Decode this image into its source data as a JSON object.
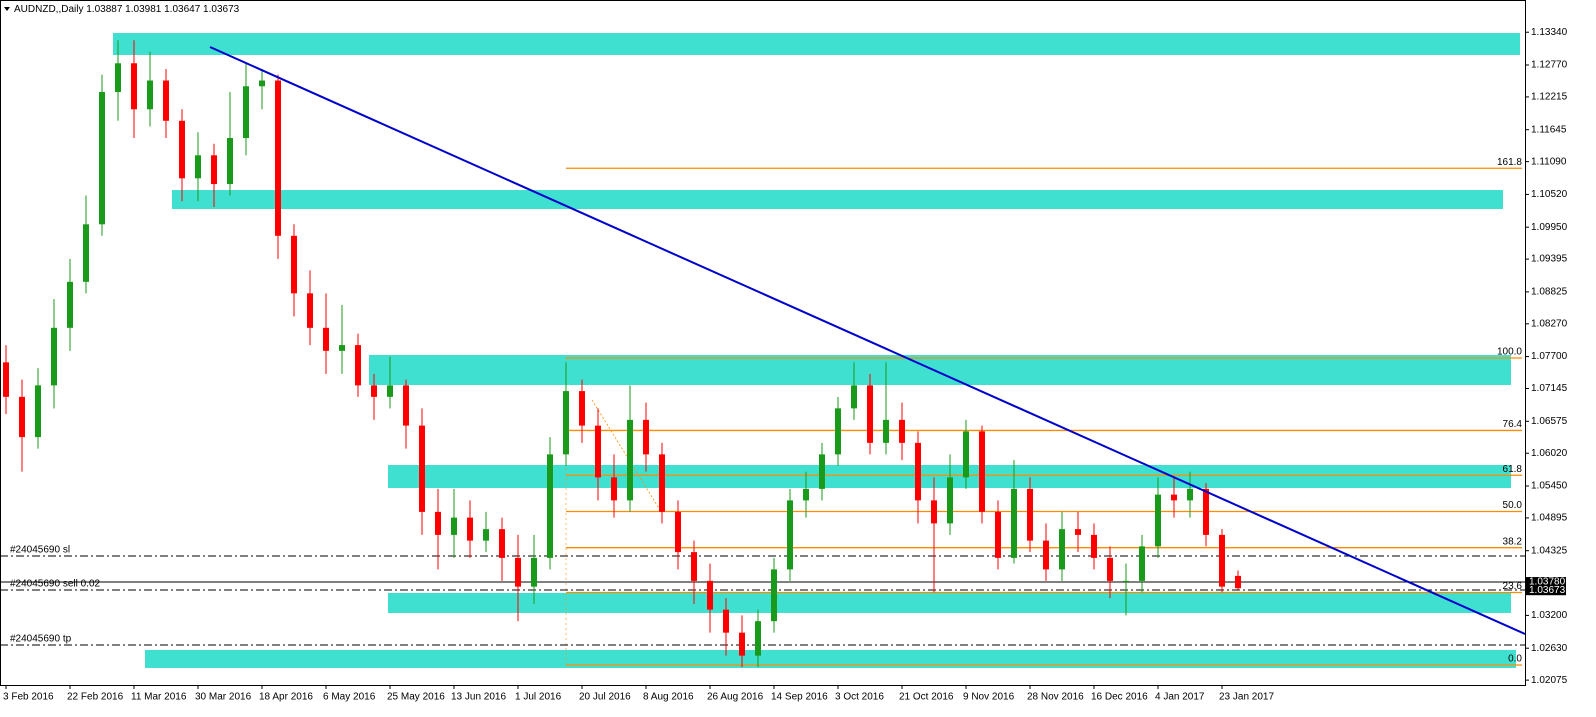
{
  "chart_data": {
    "type": "candlestick",
    "symbol": "AUDNZD,,Daily",
    "categories": [
      "3 Feb 2016",
      null,
      null,
      null,
      "22 Feb 2016",
      null,
      null,
      null,
      "11 Mar 2016",
      null,
      null,
      null,
      "30 Mar 2016",
      null,
      null,
      null,
      "18 Apr 2016",
      null,
      null,
      null,
      "6 May 2016",
      null,
      null,
      null,
      "25 May 2016",
      null,
      null,
      null,
      "13 Jun 2016",
      null,
      null,
      null,
      "1 Jul 2016",
      null,
      null,
      null,
      "20 Jul 2016",
      null,
      null,
      null,
      "8 Aug 2016",
      null,
      null,
      null,
      "26 Aug 2016",
      null,
      null,
      null,
      "14 Sep 2016",
      null,
      null,
      null,
      "3 Oct 2016",
      null,
      null,
      null,
      "21 Oct 2016",
      null,
      null,
      null,
      "9 Nov 2016",
      null,
      null,
      null,
      "28 Nov 2016",
      null,
      null,
      null,
      "16 Dec 2016",
      null,
      null,
      null,
      "4 Jan 2017",
      null,
      null,
      null,
      "23 Jan 2017",
      null
    ],
    "open": [
      1.076,
      1.07,
      1.063,
      1.072,
      1.082,
      1.09,
      1.1,
      1.123,
      1.128,
      1.12,
      1.125,
      1.118,
      1.108,
      1.112,
      1.107,
      1.115,
      1.124,
      1.125,
      1.098,
      1.088,
      1.082,
      1.078,
      1.079,
      1.072,
      1.07,
      1.072,
      1.065,
      1.05,
      1.046,
      1.049,
      1.045,
      1.047,
      1.042,
      1.037,
      1.042,
      1.06,
      1.071,
      1.065,
      1.056,
      1.052,
      1.066,
      1.06,
      1.05,
      1.043,
      1.038,
      1.033,
      1.029,
      1.025,
      1.031,
      1.04,
      1.052,
      1.054,
      1.06,
      1.068,
      1.072,
      1.062,
      1.066,
      1.062,
      1.052,
      1.048,
      1.056,
      1.064,
      1.05,
      1.042,
      1.054,
      1.045,
      1.04,
      1.047,
      1.046,
      1.042,
      1.038,
      1.038,
      1.044,
      1.053,
      1.052,
      1.054,
      1.046,
      1.03887
    ],
    "high": [
      1.079,
      1.073,
      1.075,
      1.087,
      1.094,
      1.105,
      1.126,
      1.132,
      1.132,
      1.13,
      1.127,
      1.12,
      1.116,
      1.114,
      1.123,
      1.128,
      1.127,
      1.126,
      1.1,
      1.092,
      1.088,
      1.086,
      1.081,
      1.074,
      1.077,
      1.073,
      1.068,
      1.054,
      1.054,
      1.052,
      1.05,
      1.049,
      1.046,
      1.046,
      1.063,
      1.076,
      1.073,
      1.068,
      1.06,
      1.072,
      1.069,
      1.062,
      1.052,
      1.045,
      1.041,
      1.035,
      1.032,
      1.033,
      1.042,
      1.054,
      1.057,
      1.062,
      1.07,
      1.076,
      1.074,
      1.076,
      1.069,
      1.064,
      1.056,
      1.06,
      1.066,
      1.065,
      1.052,
      1.059,
      1.056,
      1.048,
      1.05,
      1.05,
      1.048,
      1.044,
      1.041,
      1.046,
      1.056,
      1.056,
      1.057,
      1.055,
      1.047,
      1.03981
    ],
    "low": [
      1.067,
      1.057,
      1.061,
      1.068,
      1.078,
      1.088,
      1.098,
      1.118,
      1.115,
      1.117,
      1.115,
      1.104,
      1.104,
      1.103,
      1.105,
      1.112,
      1.12,
      1.094,
      1.084,
      1.079,
      1.074,
      1.074,
      1.07,
      1.066,
      1.068,
      1.061,
      1.046,
      1.04,
      1.042,
      1.042,
      1.043,
      1.038,
      1.031,
      1.034,
      1.04,
      1.058,
      1.062,
      1.052,
      1.049,
      1.05,
      1.057,
      1.048,
      1.04,
      1.034,
      1.029,
      1.025,
      1.023,
      1.023,
      1.029,
      1.038,
      1.049,
      1.052,
      1.058,
      1.066,
      1.06,
      1.06,
      1.059,
      1.048,
      1.036,
      1.046,
      1.054,
      1.048,
      1.04,
      1.041,
      1.043,
      1.038,
      1.038,
      1.043,
      1.04,
      1.035,
      1.032,
      1.036,
      1.042,
      1.049,
      1.049,
      1.044,
      1.036,
      1.03647
    ],
    "close": [
      1.07,
      1.063,
      1.072,
      1.082,
      1.09,
      1.1,
      1.123,
      1.128,
      1.12,
      1.125,
      1.118,
      1.108,
      1.112,
      1.107,
      1.115,
      1.124,
      1.125,
      1.098,
      1.088,
      1.082,
      1.078,
      1.079,
      1.072,
      1.07,
      1.072,
      1.065,
      1.05,
      1.046,
      1.049,
      1.045,
      1.047,
      1.042,
      1.037,
      1.042,
      1.06,
      1.071,
      1.065,
      1.056,
      1.052,
      1.066,
      1.06,
      1.05,
      1.043,
      1.038,
      1.033,
      1.029,
      1.025,
      1.031,
      1.04,
      1.052,
      1.054,
      1.06,
      1.068,
      1.072,
      1.062,
      1.066,
      1.062,
      1.052,
      1.048,
      1.056,
      1.064,
      1.05,
      1.042,
      1.054,
      1.045,
      1.04,
      1.047,
      1.046,
      1.042,
      1.038,
      1.038,
      1.044,
      1.053,
      1.052,
      1.054,
      1.046,
      1.037,
      1.03673
    ],
    "up_color": "#1a9a1a",
    "down_color": "#ff0000",
    "ylim": [
      1.0199,
      1.139
    ],
    "yticks": [
      {
        "value": 1.1334,
        "label": "1.13340"
      },
      {
        "value": 1.1277,
        "label": "1.12770"
      },
      1.12215,
      1.11645,
      {
        "value": 1.1109,
        "label": "1.11090"
      },
      {
        "value": 1.1052,
        "label": "1.10520"
      },
      {
        "value": 1.0995,
        "label": "1.09950"
      },
      1.09395,
      1.08825,
      {
        "value": 1.0827,
        "label": "1.08270"
      },
      {
        "value": 1.077,
        "label": "1.07700"
      },
      1.07145,
      1.06575,
      {
        "value": 1.0602,
        "label": "1.06020"
      },
      {
        "value": 1.0545,
        "label": "1.05450"
      },
      1.04895,
      1.04325,
      {
        "value": 1.032,
        "label": "1.03200"
      },
      {
        "value": 1.0263,
        "label": "1.02630"
      },
      1.02075
    ],
    "zones": [
      [
        1.13326,
        1.12944
      ],
      [
        1.10596,
        1.10266
      ],
      [
        1.07728,
        1.07206
      ],
      [
        1.05815,
        1.05415
      ],
      [
        1.0359,
        1.03242
      ],
      [
        1.02599,
        1.02286
      ]
    ],
    "zone_color": "#40e0d0",
    "trendline": [
      1.13083,
      1.02877
    ],
    "trendline_color": "#0000cd",
    "fib_color": "#ff8c00",
    "fib": [
      {
        "level": 161.8,
        "price": 1.10975
      },
      {
        "level": {
          "value": 100,
          "label": "100.0"
        },
        "price": 1.07676
      },
      {
        "level": 76.4,
        "price": 1.06416
      },
      {
        "level": 61.8,
        "price": 1.05637
      },
      {
        "level": {
          "value": 50,
          "label": "50.0"
        },
        "price": 1.05007
      },
      {
        "level": 38.2,
        "price": 1.04377
      },
      {
        "level": 23.6,
        "price": 1.03598
      },
      {
        "level": {
          "value": 0,
          "label": "0.0"
        },
        "price": 1.02338
      }
    ],
    "orders": [
      {
        "label": "#24045690 sl",
        "price": 1.04233
      },
      {
        "label": "#24045690 sell 0.02",
        "price": 1.03642
      },
      {
        "label": "#24045690 tp",
        "price": 1.02685
      }
    ],
    "price_line": {
      "value": 1.0378,
      "label": "1.03780"
    }
  }
}
